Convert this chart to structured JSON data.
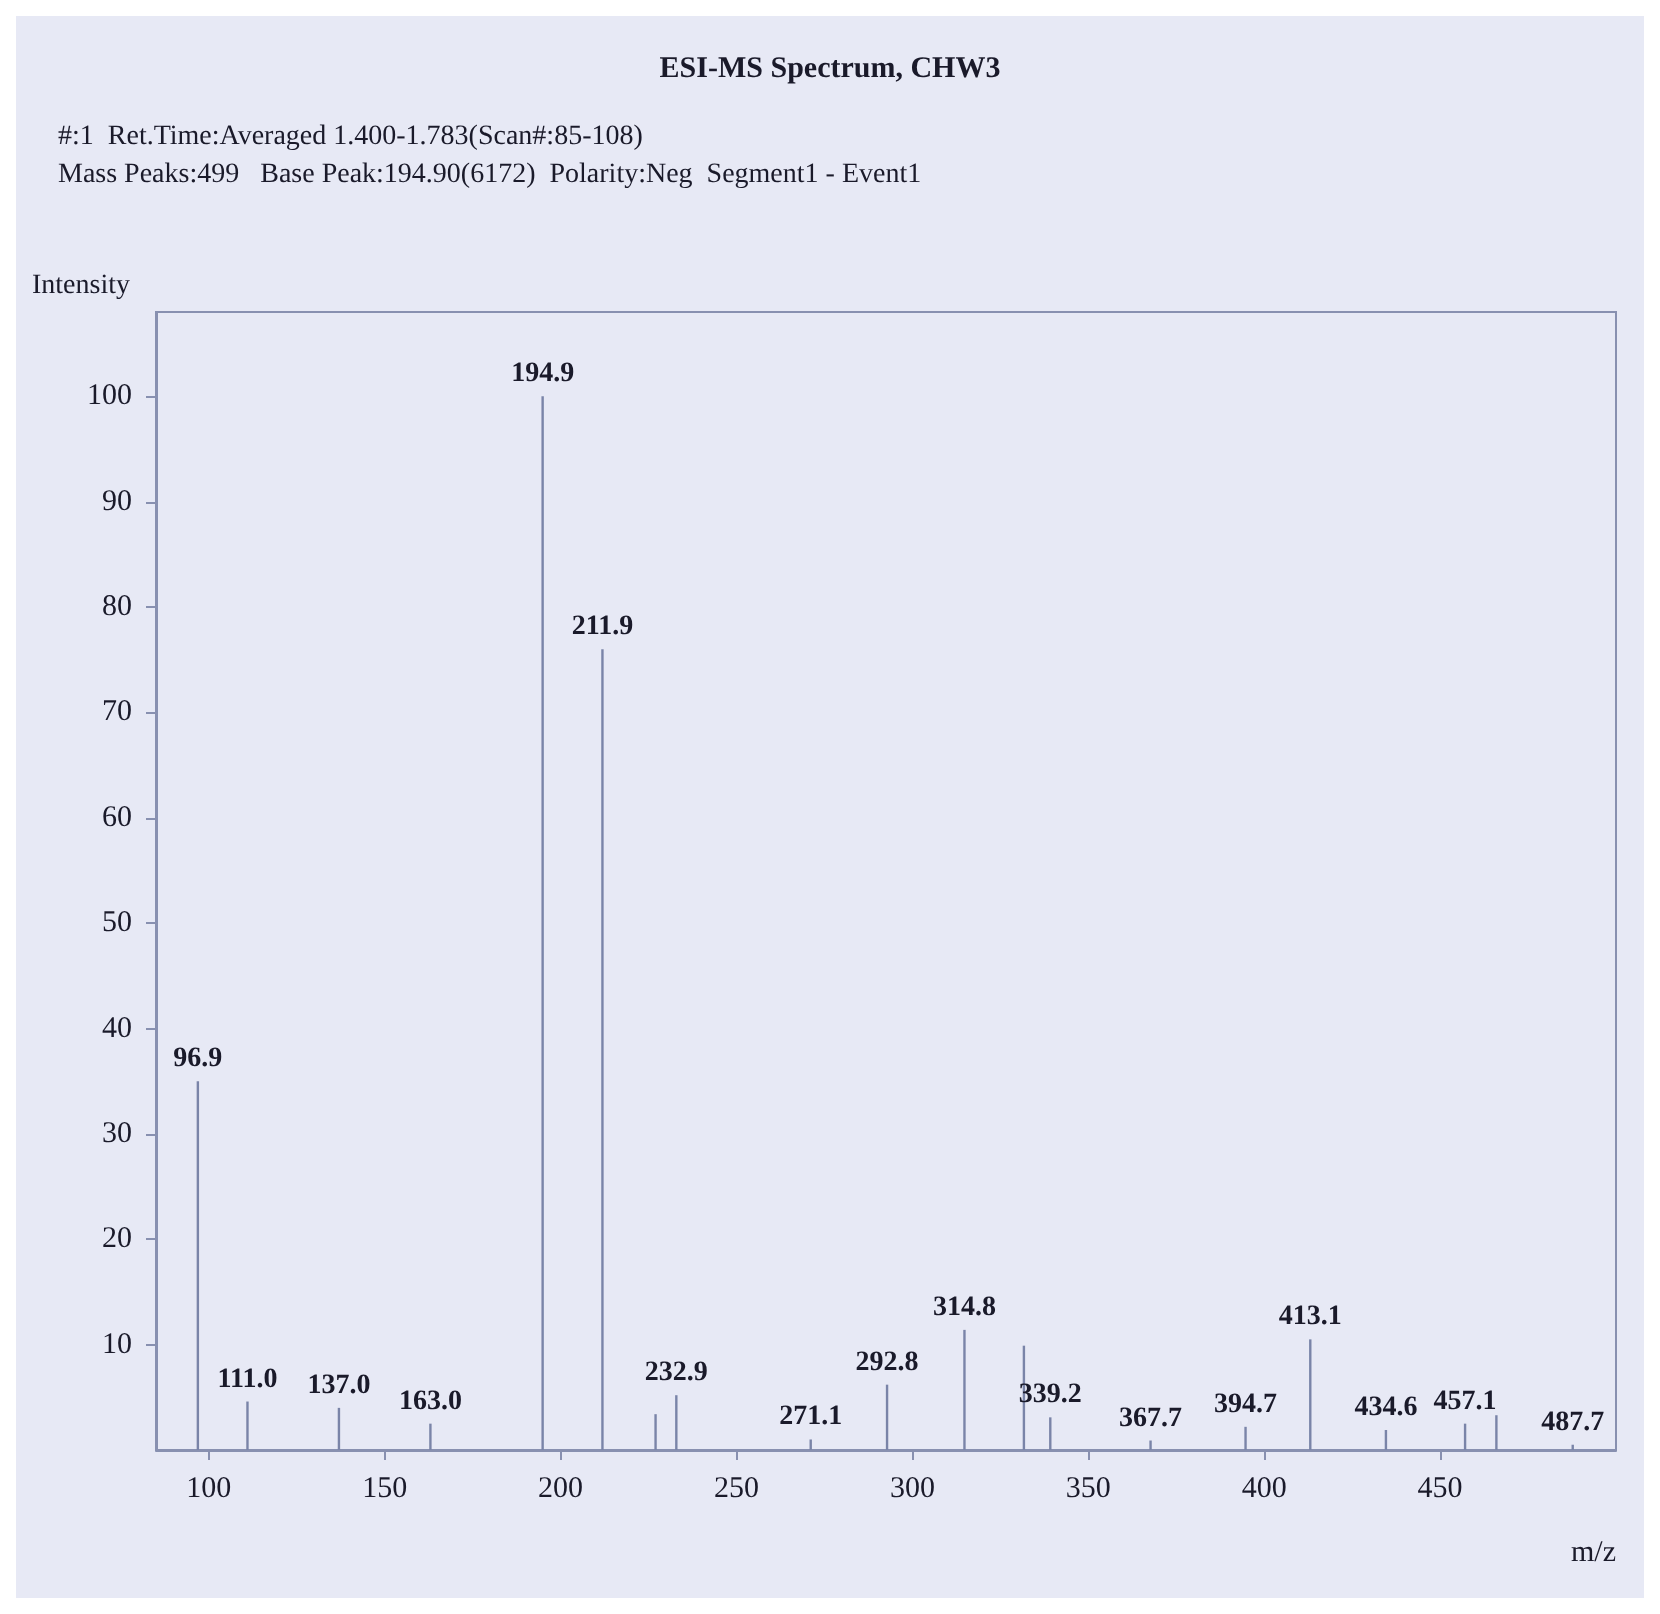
{
  "chart_data": {
    "type": "bar",
    "title": "ESI-MS Spectrum, CHW3",
    "subtitle": "#:1  Ret.Time:Averaged 1.400-1.783(Scan#:85-108)\nMass Peaks:499   Base Peak:194.90(6172)  Polarity:Neg  Segment1 - Event1",
    "ylabel": "Intensity",
    "xlabel": "m/z",
    "x": [
      96.9,
      111.0,
      137.0,
      163.0,
      194.9,
      211.9,
      227.0,
      232.9,
      271.1,
      292.8,
      314.8,
      331.7,
      339.2,
      367.7,
      394.7,
      413.1,
      434.6,
      457.1,
      466.0,
      487.7
    ],
    "values": [
      35,
      4.6,
      4.0,
      2.5,
      100,
      76,
      3.4,
      5.2,
      1.0,
      6.2,
      11.4,
      9.9,
      3.1,
      0.9,
      2.2,
      10.5,
      1.9,
      2.5,
      3.3,
      0.5
    ],
    "annotations": [
      {
        "text": "96.9",
        "x": 96.9,
        "y": 35
      },
      {
        "text": "111.0",
        "x": 111.0,
        "y": 4.6
      },
      {
        "text": "137.0",
        "x": 137.0,
        "y": 4.0
      },
      {
        "text": "163.0",
        "x": 163.0,
        "y": 2.5
      },
      {
        "text": "194.9",
        "x": 194.9,
        "y": 100
      },
      {
        "text": "211.9",
        "x": 211.9,
        "y": 76
      },
      {
        "text": "232.9",
        "x": 232.9,
        "y": 5.2
      },
      {
        "text": "271.1",
        "x": 271.1,
        "y": 1.0
      },
      {
        "text": "292.8",
        "x": 292.8,
        "y": 6.2
      },
      {
        "text": "314.8",
        "x": 314.8,
        "y": 11.4
      },
      {
        "text": "339.2",
        "x": 339.2,
        "y": 3.1
      },
      {
        "text": "367.7",
        "x": 367.7,
        "y": 0.9
      },
      {
        "text": "394.7",
        "x": 394.7,
        "y": 2.2
      },
      {
        "text": "413.1",
        "x": 413.1,
        "y": 10.5
      },
      {
        "text": "434.6",
        "x": 434.6,
        "y": 1.9
      },
      {
        "text": "457.1",
        "x": 457.1,
        "y": 2.5
      },
      {
        "text": "487.7",
        "x": 487.7,
        "y": 0.5
      }
    ],
    "color": "#7a84a8",
    "xlim": [
      85,
      500
    ],
    "xticks": [
      100,
      150,
      200,
      250,
      300,
      350,
      400,
      450
    ],
    "ylim": [
      0,
      108
    ],
    "yticks": [
      10,
      20,
      30,
      40,
      50,
      60,
      70,
      80,
      90,
      100
    ],
    "grid": false
  }
}
